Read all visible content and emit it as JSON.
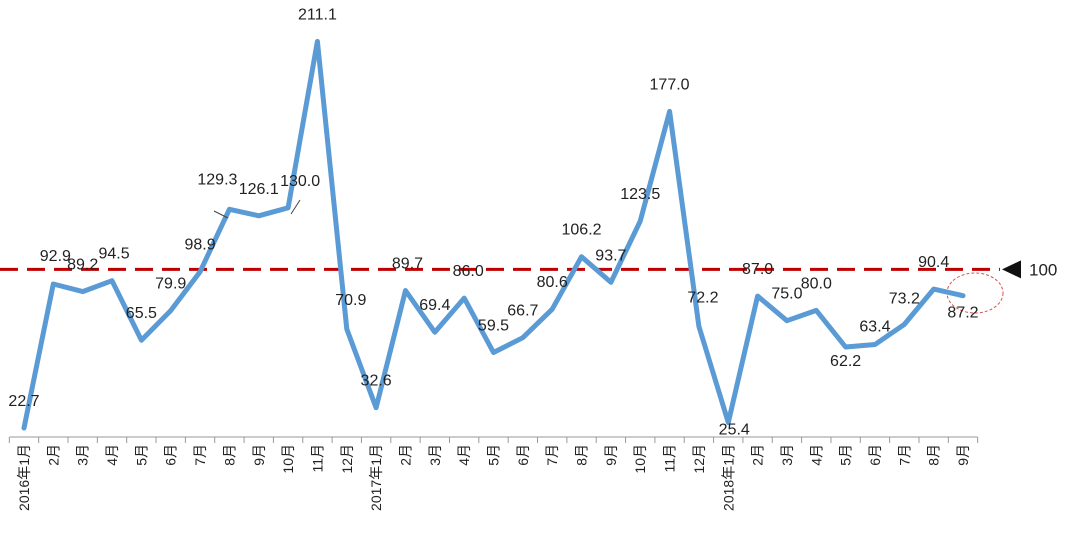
{
  "chart_data": {
    "type": "line",
    "categories": [
      "2016年1月",
      "2月",
      "3月",
      "4月",
      "5月",
      "6月",
      "7月",
      "8月",
      "9月",
      "10月",
      "11月",
      "12月",
      "2017年1月",
      "2月",
      "3月",
      "4月",
      "5月",
      "6月",
      "7月",
      "8月",
      "9月",
      "10月",
      "11月",
      "12月",
      "2018年1月",
      "2月",
      "3月",
      "4月",
      "5月",
      "6月",
      "7月",
      "8月",
      "9月"
    ],
    "values": [
      22.7,
      92.9,
      89.2,
      94.5,
      65.5,
      79.9,
      98.9,
      129.3,
      126.1,
      130.0,
      211.1,
      70.9,
      32.6,
      89.7,
      69.4,
      86.0,
      59.5,
      66.7,
      80.6,
      106.2,
      93.7,
      123.5,
      177.0,
      72.2,
      25.4,
      87.0,
      75.0,
      80.0,
      62.2,
      63.4,
      73.2,
      90.4,
      87.2
    ],
    "data_labels": [
      "22.7",
      "92.9",
      "89.2",
      "94.5",
      "65.5",
      "79.9",
      "98.9",
      "129.3",
      "126.1",
      "130.0",
      "211.1",
      "70.9",
      "32.6",
      "89.7",
      "69.4",
      "86.0",
      "59.5",
      "66.7",
      "80.6",
      "106.2",
      "93.7",
      "123.5",
      "177.0",
      "72.2",
      "25.4",
      "87.0",
      "75.0",
      "80.0",
      "62.2",
      "63.4",
      "73.2",
      "90.4",
      "87.2"
    ],
    "reference_line": {
      "value": 100,
      "label": "100",
      "color": "#c00000",
      "style": "dashed"
    },
    "highlight": {
      "index": 32,
      "style": "dotted-ellipse",
      "color": "#d9534f"
    },
    "series_color": "#5b9bd5",
    "ylim": [
      0,
      230
    ],
    "grid": false,
    "title": "",
    "xlabel": "",
    "ylabel": ""
  }
}
